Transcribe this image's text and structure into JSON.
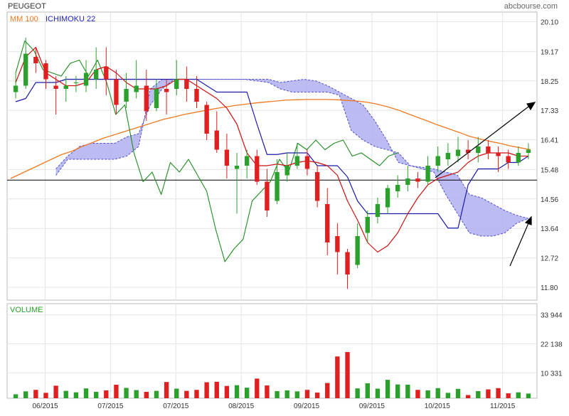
{
  "header": {
    "instrument": "PEUGEOT",
    "source": "abcbourse.com",
    "legend": [
      {
        "label": "MM 100",
        "color": "#f07820"
      },
      {
        "label": "ICHIMOKU 22",
        "color": "#2020c0"
      }
    ],
    "volume_label": "VOLUME"
  },
  "colors": {
    "up": "#2ca02c",
    "down": "#e02020",
    "mm100": "#f07820",
    "kijun": "#1a1aa8",
    "tenkan": "#cc1111",
    "chikou": "#1e8c1e",
    "cloud_fill": "#b0b0f0",
    "cloud_line": "#5050d0",
    "reference_line": "#000000"
  },
  "chart_data": [
    {
      "type": "candlestick",
      "title": "PEUGEOT",
      "x_ticks": [
        "06/2015",
        "07/2015",
        "07/2015",
        "08/2015",
        "09/2015",
        "09/2015",
        "10/2015",
        "11/2015"
      ],
      "y_ticks": [
        "20.10",
        "19.17",
        "18.25",
        "17.33",
        "16.41",
        "15.48",
        "14.56",
        "13.64",
        "12.72",
        "11.80"
      ],
      "ylim": [
        11.4,
        20.4
      ],
      "grid": true,
      "reference_level": 15.15,
      "legend_placement": "top-left",
      "series": [
        {
          "name": "MM 100",
          "values": [
            15.2,
            15.35,
            15.5,
            15.65,
            15.8,
            15.95,
            16.05,
            16.2,
            16.32,
            16.45,
            16.55,
            16.65,
            16.75,
            16.85,
            16.95,
            17.05,
            17.12,
            17.2,
            17.26,
            17.32,
            17.38,
            17.43,
            17.48,
            17.52,
            17.56,
            17.59,
            17.62,
            17.65,
            17.66,
            17.67,
            17.67,
            17.67,
            17.66,
            17.64,
            17.62,
            17.58,
            17.52,
            17.44,
            17.34,
            17.22,
            17.1,
            16.98,
            16.86,
            16.75,
            16.64,
            16.52,
            16.44,
            16.36,
            16.3,
            16.22,
            16.16,
            16.1
          ]
        },
        {
          "name": "ICHIMOKU 22 kijun",
          "values": [
            17.6,
            17.7,
            18.2,
            18.2,
            18.2,
            18.3,
            18.3,
            18.3,
            18.3,
            18.3,
            18.3,
            18.3,
            18.3,
            18.3,
            18.3,
            18.3,
            18.3,
            18.3,
            18.3,
            18.1,
            17.9,
            17.9,
            17.9,
            17.9,
            16.9,
            15.95,
            15.95,
            16.0,
            16.0,
            16.0,
            15.6,
            15.6,
            15.6,
            15.25,
            14.5,
            14.1,
            14.1,
            14.1,
            14.1,
            14.1,
            14.1,
            14.1,
            14.1,
            13.65,
            13.65,
            15.0,
            15.5,
            15.5,
            15.5,
            15.7,
            15.7,
            15.9
          ]
        },
        {
          "name": "ICHIMOKU 22 tenkan",
          "values": [
            18.2,
            19.0,
            19.3,
            18.5,
            18.3,
            18.1,
            18.1,
            18.2,
            18.6,
            18.7,
            18.5,
            18.2,
            18.0,
            18.0,
            18.0,
            18.1,
            18.3,
            18.3,
            18.1,
            17.9,
            17.7,
            17.4,
            16.9,
            16.0,
            15.6,
            15.6,
            15.65,
            15.6,
            15.7,
            15.75,
            15.7,
            15.6,
            15.3,
            14.5,
            13.9,
            13.2,
            12.9,
            13.1,
            13.5,
            14.1,
            14.6,
            15.0,
            15.2,
            15.3,
            15.4,
            15.7,
            15.9,
            16.0,
            16.0,
            16.0,
            15.9,
            15.9
          ]
        },
        {
          "name": "ICHIMOKU 22 chikou",
          "values": [
            18.5,
            19.5,
            19.2,
            18.6,
            18.5,
            18.4,
            18.8,
            18.9,
            18.4,
            18.9,
            18.2,
            17.2,
            17.5,
            16.0,
            15.1,
            15.4,
            14.7,
            15.7,
            15.4,
            15.8,
            15.3,
            14.8,
            13.6,
            12.6,
            13.0,
            13.3,
            14.5,
            14.8,
            15.1,
            15.8,
            15.4,
            16.3,
            16.1,
            16.4,
            16.1,
            16.3,
            16.4,
            15.9,
            16.0,
            15.8,
            15.6,
            15.9,
            16.0
          ]
        },
        {
          "name": "ICHIMOKU 22 cloud span A",
          "values": [
            15.5,
            15.9,
            16.2,
            16.3,
            16.3,
            16.3,
            16.5,
            16.6,
            17.5,
            18.0,
            18.3,
            18.3,
            18.3,
            18.3,
            18.3,
            18.3,
            18.3,
            18.3,
            18.3,
            18.2,
            18.25,
            18.3,
            18.25,
            18.1,
            17.9,
            17.7,
            17.5,
            17.0,
            16.4,
            15.7,
            15.6,
            15.55,
            15.5,
            15.4,
            15.3,
            14.7,
            14.6,
            14.4,
            14.2,
            14.05,
            13.95
          ]
        },
        {
          "name": "ICHIMOKU 22 cloud span B",
          "values": [
            15.3,
            15.8,
            15.8,
            15.8,
            15.8,
            15.8,
            15.9,
            16.2,
            18.0,
            18.3,
            18.3,
            18.3,
            18.3,
            18.3,
            18.3,
            18.3,
            18.3,
            18.25,
            18.2,
            18.0,
            17.9,
            17.9,
            17.9,
            17.9,
            17.8,
            16.7,
            16.4,
            16.2,
            16.1,
            16.0,
            15.6,
            15.5,
            15.4,
            14.7,
            14.1,
            13.5,
            13.4,
            13.4,
            13.5,
            13.8,
            13.95
          ]
        },
        {
          "name": "Close",
          "values": [
            18.1,
            19.1,
            18.8,
            18.3,
            18.0,
            18.1,
            18.2,
            18.5,
            18.6,
            18.3,
            17.5,
            18.0,
            18.1,
            17.3,
            18.0,
            17.9,
            18.3,
            18.0,
            17.6,
            16.6,
            16.1,
            15.6,
            15.6,
            15.9,
            15.1,
            14.2,
            15.4,
            15.6,
            15.9,
            15.5,
            14.5,
            13.2,
            12.9,
            12.2,
            13.4,
            14.0,
            14.4,
            14.9,
            15.0,
            15.2,
            15.1,
            15.6,
            15.9,
            16.0,
            16.1,
            16.0,
            16.2,
            16.0,
            15.9,
            15.7,
            16.0,
            16.1
          ]
        },
        {
          "name": "VOLUME",
          "values": [
            1.6,
            2.8,
            3.4,
            2.2,
            5.1,
            3.0,
            2.4,
            4.0,
            2.6,
            3.2,
            5.5,
            4.2,
            3.3,
            2.6,
            3.0,
            6.6,
            3.9,
            3.0,
            3.4,
            6.5,
            6.7,
            5.0,
            5.3,
            4.3,
            8.0,
            5.2,
            2.9,
            3.2,
            2.8,
            3.4,
            2.3,
            6.2,
            17.0,
            18.8,
            4.0,
            6.1,
            3.9,
            7.5,
            5.6,
            5.5,
            3.4,
            3.2,
            4.1,
            2.2,
            3.8,
            1.3,
            2.9,
            3.6,
            4.1,
            2.0,
            2.4,
            1.9
          ]
        }
      ],
      "candles": [
        [
          17.9,
          18.5,
          17.7,
          18.1
        ],
        [
          18.1,
          19.6,
          18.0,
          19.1
        ],
        [
          19.0,
          19.3,
          18.5,
          18.8
        ],
        [
          18.8,
          18.9,
          18.0,
          18.3
        ],
        [
          18.1,
          18.4,
          17.2,
          18.0
        ],
        [
          18.0,
          18.4,
          17.6,
          18.1
        ],
        [
          18.2,
          18.4,
          17.9,
          18.2
        ],
        [
          18.1,
          18.9,
          17.9,
          18.5
        ],
        [
          18.3,
          19.3,
          18.0,
          18.6
        ],
        [
          18.7,
          19.3,
          17.8,
          18.3
        ],
        [
          18.3,
          18.6,
          17.2,
          17.5
        ],
        [
          17.6,
          18.5,
          17.4,
          18.0
        ],
        [
          17.9,
          18.9,
          17.7,
          18.1
        ],
        [
          18.1,
          18.6,
          17.0,
          17.3
        ],
        [
          17.4,
          18.3,
          17.3,
          18.0
        ],
        [
          18.0,
          18.3,
          17.2,
          17.9
        ],
        [
          18.0,
          18.9,
          17.8,
          18.3
        ],
        [
          18.3,
          18.7,
          17.6,
          18.0
        ],
        [
          18.0,
          18.4,
          17.4,
          17.6
        ],
        [
          17.5,
          17.6,
          16.4,
          16.6
        ],
        [
          16.7,
          17.3,
          16.0,
          16.1
        ],
        [
          16.1,
          16.6,
          15.2,
          15.6
        ],
        [
          15.5,
          16.0,
          14.1,
          15.6
        ],
        [
          15.6,
          16.1,
          15.2,
          15.9
        ],
        [
          15.9,
          16.1,
          15.0,
          15.1
        ],
        [
          15.1,
          15.5,
          14.0,
          14.2
        ],
        [
          14.5,
          15.8,
          14.4,
          15.4
        ],
        [
          15.3,
          16.0,
          15.1,
          15.6
        ],
        [
          15.6,
          16.3,
          15.5,
          15.9
        ],
        [
          15.9,
          16.1,
          15.3,
          15.5
        ],
        [
          15.4,
          15.6,
          14.3,
          14.5
        ],
        [
          14.4,
          14.9,
          12.8,
          13.2
        ],
        [
          13.4,
          13.8,
          12.2,
          12.9
        ],
        [
          12.9,
          13.0,
          11.75,
          12.2
        ],
        [
          12.5,
          13.8,
          12.4,
          13.4
        ],
        [
          13.5,
          14.2,
          13.2,
          14.0
        ],
        [
          14.0,
          14.6,
          13.8,
          14.4
        ],
        [
          14.3,
          15.0,
          14.1,
          14.9
        ],
        [
          14.8,
          15.3,
          14.6,
          15.0
        ],
        [
          15.0,
          15.6,
          14.8,
          15.2
        ],
        [
          15.2,
          15.4,
          14.9,
          15.1
        ],
        [
          15.1,
          15.9,
          15.0,
          15.6
        ],
        [
          15.6,
          16.2,
          15.4,
          15.9
        ],
        [
          15.8,
          16.3,
          15.6,
          16.0
        ],
        [
          15.9,
          16.5,
          15.7,
          16.1
        ],
        [
          16.1,
          16.4,
          15.8,
          16.0
        ],
        [
          16.0,
          16.5,
          15.7,
          16.2
        ],
        [
          16.2,
          16.4,
          15.8,
          16.0
        ],
        [
          16.0,
          16.2,
          15.4,
          15.9
        ],
        [
          15.9,
          16.1,
          15.5,
          15.7
        ],
        [
          15.7,
          16.2,
          15.6,
          16.0
        ],
        [
          16.0,
          16.3,
          15.8,
          16.1
        ]
      ],
      "volume_ticks": [
        "33 944",
        "22 138",
        "10 331"
      ],
      "volume_ylim": [
        0,
        38.5
      ]
    }
  ]
}
